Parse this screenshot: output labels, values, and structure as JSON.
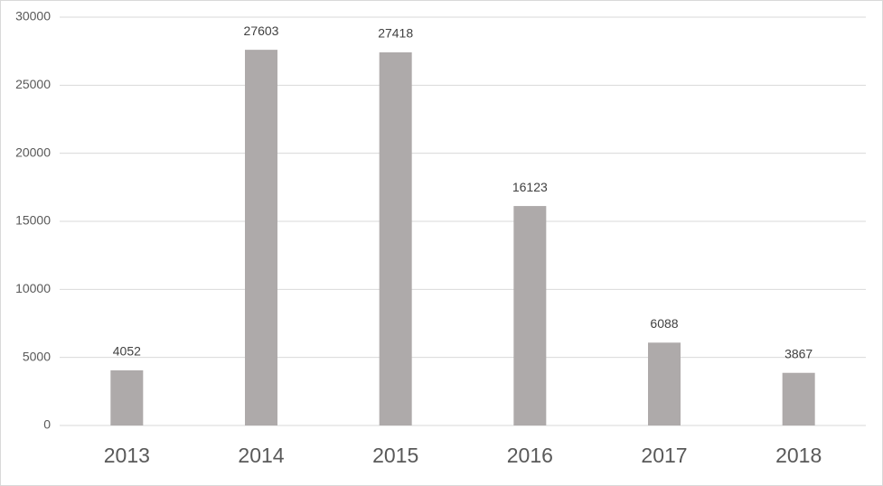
{
  "chart_data": {
    "type": "bar",
    "categories": [
      "2013",
      "2014",
      "2015",
      "2016",
      "2017",
      "2018"
    ],
    "values": [
      4052,
      27603,
      27418,
      16123,
      6088,
      3867
    ],
    "color": "#aeaaaa",
    "ylim": [
      0,
      30000
    ],
    "yticks": [
      0,
      5000,
      10000,
      15000,
      20000,
      25000,
      30000
    ],
    "grid": true
  }
}
